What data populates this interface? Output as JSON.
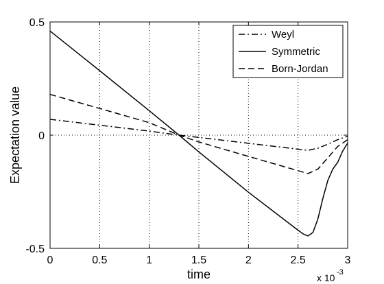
{
  "chart_data": {
    "type": "line",
    "xlabel": "time",
    "ylabel": "Expectation value",
    "x_multiplier": "x 10",
    "x_multiplier_exp": "-3",
    "xlim": [
      0,
      3
    ],
    "ylim": [
      -0.5,
      0.5
    ],
    "xticks": [
      0,
      0.5,
      1,
      1.5,
      2,
      2.5,
      3
    ],
    "xtick_labels": [
      "0",
      "0.5",
      "1",
      "1.5",
      "2",
      "2.5",
      "3"
    ],
    "yticks": [
      -0.5,
      0,
      0.5
    ],
    "ytick_labels": [
      "-0.5",
      "0",
      "0.5"
    ],
    "grid": "dotted",
    "legend_position": "top-right",
    "series": [
      {
        "name": "Weyl",
        "style": "dashdot",
        "color": "#000000",
        "x": [
          0,
          0.5,
          1.0,
          1.3,
          1.5,
          2.0,
          2.5,
          2.6,
          2.7,
          2.8,
          2.9,
          3.0
        ],
        "y": [
          0.07,
          0.044,
          0.018,
          0.0,
          -0.01,
          -0.036,
          -0.062,
          -0.067,
          -0.058,
          -0.04,
          -0.02,
          -0.005
        ]
      },
      {
        "name": "Symmetric",
        "style": "solid",
        "color": "#000000",
        "x": [
          0,
          0.5,
          1.0,
          1.3,
          1.5,
          2.0,
          2.5,
          2.55,
          2.6,
          2.65,
          2.7,
          2.75,
          2.8,
          2.85,
          2.9,
          2.95,
          3.0
        ],
        "y": [
          0.46,
          0.285,
          0.108,
          0.0,
          -0.074,
          -0.252,
          -0.42,
          -0.436,
          -0.445,
          -0.43,
          -0.37,
          -0.28,
          -0.2,
          -0.15,
          -0.12,
          -0.07,
          -0.035
        ]
      },
      {
        "name": "Born-Jordan",
        "style": "dashed",
        "color": "#000000",
        "x": [
          0,
          0.5,
          1.0,
          1.3,
          1.5,
          2.0,
          2.5,
          2.6,
          2.7,
          2.8,
          2.9,
          3.0
        ],
        "y": [
          0.18,
          0.118,
          0.055,
          0.0,
          -0.03,
          -0.094,
          -0.157,
          -0.17,
          -0.15,
          -0.1,
          -0.05,
          -0.02
        ]
      }
    ]
  }
}
